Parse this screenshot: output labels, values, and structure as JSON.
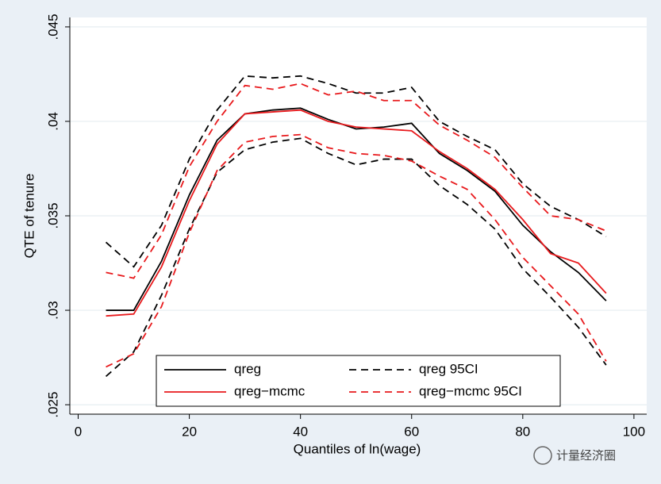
{
  "chart_data": {
    "type": "line",
    "x_label": "Quantiles of ln(wage)",
    "y_label": "QTE of tenure",
    "x": [
      5,
      10,
      15,
      20,
      25,
      30,
      35,
      40,
      45,
      50,
      55,
      60,
      65,
      70,
      75,
      80,
      85,
      90,
      95
    ],
    "series": [
      {
        "name": "qreg",
        "color": "#000000",
        "dashed": false,
        "values": [
          0.03,
          0.03,
          0.0326,
          0.0361,
          0.039,
          0.0404,
          0.0406,
          0.0407,
          0.0401,
          0.0396,
          0.0397,
          0.0399,
          0.0383,
          0.0374,
          0.0363,
          0.0345,
          0.0331,
          0.032,
          0.0305
        ]
      },
      {
        "name": "qreg 95CI",
        "color": "#000000",
        "dashed": true,
        "upper": [
          0.0336,
          0.0323,
          0.0345,
          0.038,
          0.0406,
          0.0424,
          0.0423,
          0.0424,
          0.042,
          0.0415,
          0.0415,
          0.0418,
          0.04,
          0.0392,
          0.0385,
          0.0367,
          0.0355,
          0.0348,
          0.0339
        ],
        "lower": [
          0.0265,
          0.0278,
          0.0308,
          0.0343,
          0.0373,
          0.0385,
          0.0389,
          0.0391,
          0.0383,
          0.0377,
          0.038,
          0.038,
          0.0366,
          0.0356,
          0.0343,
          0.0322,
          0.0307,
          0.0291,
          0.0271
        ]
      },
      {
        "name": "qreg−mcmc",
        "color": "#e8191c",
        "dashed": false,
        "values": [
          0.0297,
          0.0298,
          0.0323,
          0.0358,
          0.0388,
          0.0404,
          0.0405,
          0.0406,
          0.04,
          0.0397,
          0.0396,
          0.0395,
          0.0384,
          0.0375,
          0.0364,
          0.0348,
          0.033,
          0.0325,
          0.0309
        ]
      },
      {
        "name": "qreg−mcmc 95CI",
        "color": "#e8191c",
        "dashed": true,
        "upper": [
          0.032,
          0.0317,
          0.034,
          0.0376,
          0.04,
          0.0419,
          0.0417,
          0.042,
          0.0414,
          0.0416,
          0.0411,
          0.0411,
          0.0398,
          0.039,
          0.0381,
          0.0365,
          0.035,
          0.0348,
          0.0342
        ],
        "lower": [
          0.027,
          0.0277,
          0.0302,
          0.0341,
          0.0374,
          0.0389,
          0.0392,
          0.0393,
          0.0386,
          0.0383,
          0.0382,
          0.0379,
          0.0371,
          0.0364,
          0.0348,
          0.0328,
          0.0313,
          0.0298,
          0.0273
        ]
      }
    ],
    "xlim": [
      -1.5,
      102.3
    ],
    "xticks": [
      0,
      20,
      40,
      60,
      80,
      100
    ],
    "ylim": [
      0.0245,
      0.0455
    ],
    "yticks": [
      {
        "value": 0.025,
        "label": ".025"
      },
      {
        "value": 0.03,
        "label": ".03"
      },
      {
        "value": 0.035,
        "label": ".035"
      },
      {
        "value": 0.04,
        "label": ".04"
      },
      {
        "value": 0.045,
        "label": ".045"
      }
    ],
    "grid": true,
    "legend": "bottom",
    "watermark": "计量经济圈"
  }
}
